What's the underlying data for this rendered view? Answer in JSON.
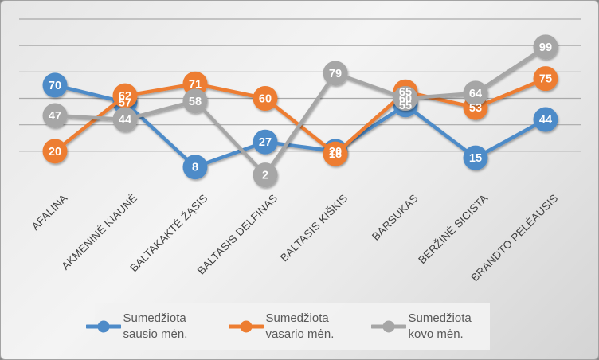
{
  "chart_data": {
    "type": "line",
    "title": "",
    "xlabel": "",
    "ylabel": "",
    "categories": [
      "AFALINA",
      "AKMENINĖ KIAUNĖ",
      "BALTAKAKTĖ ŽĄSIS",
      "BALTASIS DELFINAS",
      "BALTASIS KIŠKIS",
      "BARSUKAS",
      "BERŽINĖ SICISTA",
      "BRANDTO PELĖAUSIS"
    ],
    "series": [
      {
        "name": "Sumedžiota sausio mėn.",
        "color": "#4e8bc8",
        "values": [
          70,
          57,
          8,
          27,
          20,
          55,
          15,
          44
        ]
      },
      {
        "name": "Sumedžiota vasario mėn.",
        "color": "#ed7d31",
        "values": [
          20,
          62,
          71,
          60,
          18,
          65,
          53,
          75
        ]
      },
      {
        "name": "Sumedžiota kovo mėn.",
        "color": "#a6a6a6",
        "values": [
          47,
          44,
          58,
          2,
          79,
          60,
          64,
          99
        ]
      }
    ],
    "ylim": [
      0,
      120
    ],
    "grid_step": 20,
    "grid": true,
    "y_axis_labels_visible": false,
    "data_labels": true,
    "marker_style": "circle",
    "legend_position": "bottom"
  },
  "style": {
    "axis_color": "#3b3b3b",
    "gridline_color": "#a9a9a9",
    "data_label_color": "#ffffff",
    "category_text_color": "#404040",
    "legend_text_color": "#595959"
  }
}
